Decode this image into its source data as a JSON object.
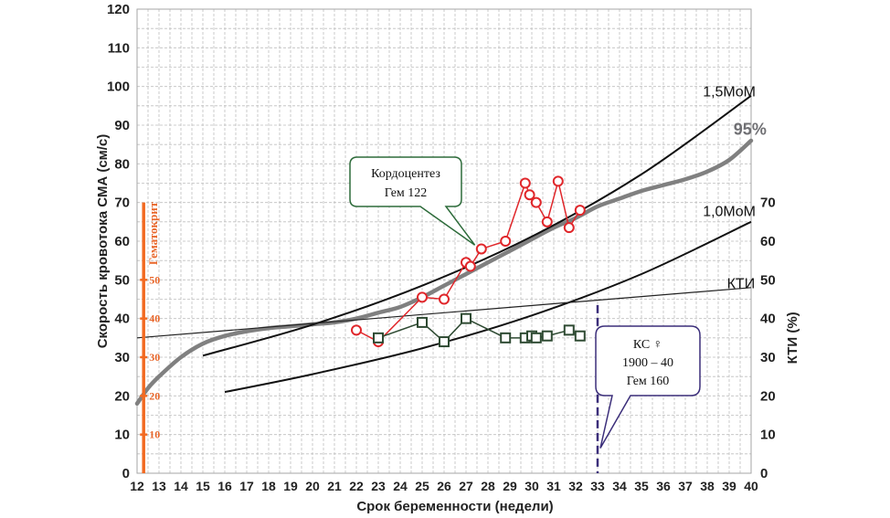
{
  "chart_data": {
    "type": "line",
    "xlabel": "Срок беременности (недели)",
    "ylabel": "Скорость кровотока СМА (см/с)",
    "y2label": "КТИ (%)",
    "hctlabel": "Гематокрит",
    "xlim": [
      12,
      40
    ],
    "ylim": [
      0,
      120
    ],
    "x_ticks": [
      12,
      13,
      14,
      15,
      16,
      17,
      18,
      19,
      20,
      21,
      22,
      23,
      24,
      25,
      26,
      27,
      28,
      29,
      30,
      31,
      32,
      33,
      34,
      35,
      36,
      37,
      38,
      39,
      40
    ],
    "y_ticks": [
      0,
      10,
      20,
      30,
      40,
      50,
      60,
      70,
      80,
      90,
      100,
      110,
      120
    ],
    "y2_ticks": [
      0,
      10,
      20,
      30,
      40,
      50,
      60,
      70
    ],
    "hct_ticks": [
      10,
      20,
      30,
      40,
      50
    ],
    "grid": true,
    "colors": {
      "grid": "#bfbfbf",
      "mom": "#111111",
      "p95": "#808080",
      "kti": "#222222",
      "mca": "#e0262a",
      "cti": "#2e4a32",
      "hematocrit": "#f26a22",
      "delivery": "#3b2e7a",
      "callout1_border": "#2d6b3a",
      "callout2_border": "#3b2e7a"
    },
    "curves": {
      "mom_1_5": {
        "label": "1,5MoM",
        "x": [
          15,
          20,
          25,
          30,
          35,
          40
        ],
        "y": [
          30.4,
          38.4,
          48.5,
          61.2,
          77.3,
          97.6
        ]
      },
      "mom_1_0": {
        "label": "1,0MoM",
        "x": [
          16,
          20,
          25,
          30,
          35,
          40
        ],
        "y": [
          21.0,
          25.6,
          32.3,
          40.8,
          51.5,
          65.0
        ]
      },
      "p95": {
        "label": "95%",
        "x": [
          12,
          12.5,
          13,
          14,
          15,
          16,
          17,
          18,
          19,
          20,
          21,
          22,
          23,
          24,
          25,
          26,
          27,
          28,
          29,
          30,
          31,
          32,
          33,
          34,
          35,
          36,
          37,
          38,
          39,
          40
        ],
        "y": [
          18,
          22,
          25,
          30,
          33.5,
          35.5,
          36.7,
          37.5,
          38,
          38.5,
          39,
          40,
          41.5,
          43,
          45.5,
          48.5,
          51.5,
          54.5,
          57.5,
          60.5,
          63.5,
          66,
          69,
          71,
          73,
          74.5,
          76,
          78,
          81,
          86
        ]
      },
      "kti": {
        "label": "КТИ",
        "x": [
          12,
          40
        ],
        "y": [
          35,
          48
        ]
      }
    },
    "mca_points": {
      "x": [
        22,
        23,
        25,
        26,
        27,
        27.2,
        27.7,
        28.8,
        29.7,
        29.9,
        30.2,
        30.7,
        31.2,
        31.7,
        32.2
      ],
      "y": [
        37,
        34,
        45.5,
        45,
        54.5,
        53.5,
        58,
        60,
        75,
        72,
        70,
        65,
        75.5,
        63.5,
        68
      ]
    },
    "cti_points": {
      "x": [
        23,
        25,
        26,
        27,
        28.8,
        29.7,
        30,
        30.2,
        30.7,
        31.7,
        32.2
      ],
      "y": [
        35,
        39,
        34,
        40,
        35,
        35,
        35.5,
        35,
        35.5,
        37,
        35.5
      ]
    },
    "hematocrit_bar": {
      "from": 0,
      "to": 70
    },
    "delivery_week": 33,
    "callouts": [
      {
        "name": "cordocentesis",
        "lines": [
          "Кордоцентез",
          "Гем 122"
        ]
      },
      {
        "name": "delivery",
        "lines": [
          "КС ♀",
          "1900 – 40",
          "Гем 160"
        ]
      }
    ]
  }
}
